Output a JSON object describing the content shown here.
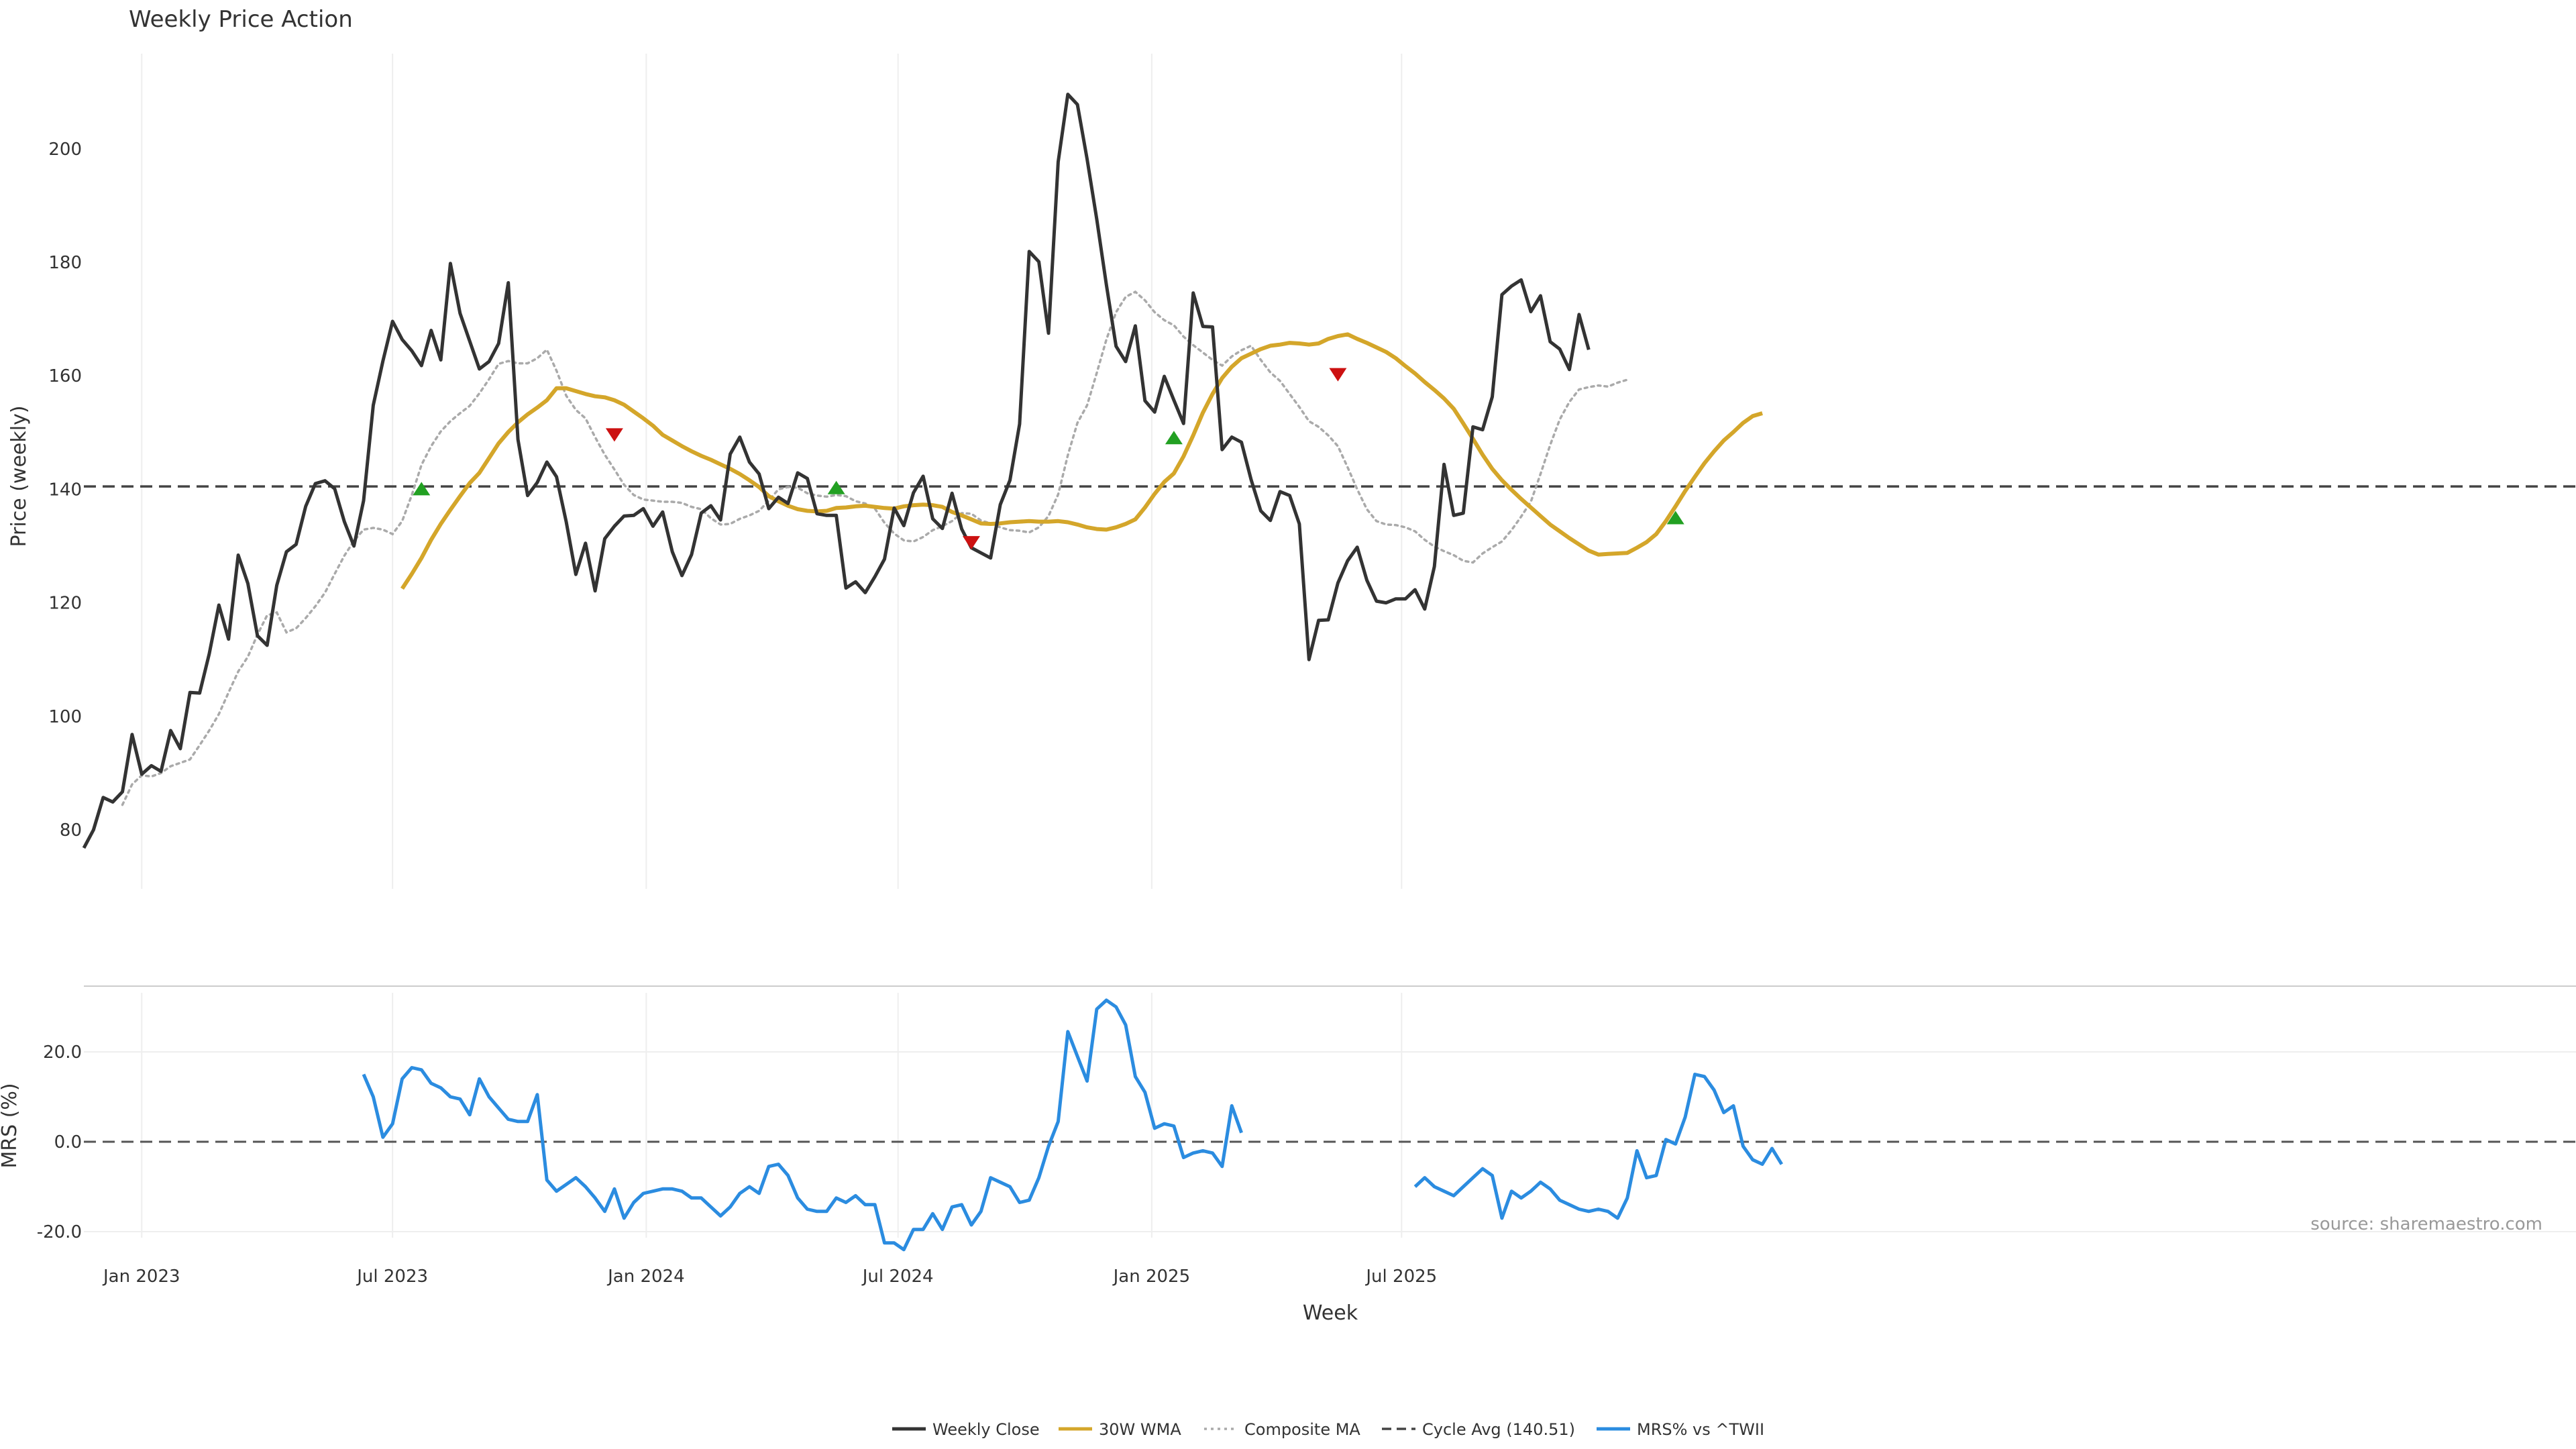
{
  "chart_data": {
    "type": "line",
    "title": "Weekly Price Action",
    "source_note": "source: sharemaestro.com",
    "xlabel": "Week",
    "x_ticks": [
      "Jan 2023",
      "Jul 2023",
      "Jan 2024",
      "Jul 2024",
      "Jan 2025",
      "Jul 2025"
    ],
    "x_range_weeks": [
      0,
      180
    ],
    "price_panel": {
      "ylabel": "Price (weekly)",
      "ylim": [
        70,
        218
      ],
      "y_ticks": [
        "80",
        "100",
        "120",
        "140",
        "160",
        "180",
        "200"
      ],
      "cycle_avg": 140.51,
      "weekly_close": [
        76.8,
        80.0,
        85.7,
        84.9,
        86.7,
        96.8,
        89.8,
        91.3,
        90.3,
        97.5,
        94.3,
        104.2,
        104.1,
        111.0,
        119.6,
        113.6,
        128.4,
        123.4,
        114.2,
        112.5,
        123.1,
        129.0,
        130.3,
        137.0,
        141.0,
        141.5,
        140.1,
        134.3,
        130.0,
        138.0,
        154.8,
        162.6,
        169.6,
        166.4,
        164.4,
        161.8,
        168.0,
        162.8,
        179.8,
        171.0,
        166.1,
        161.2,
        162.5,
        165.7,
        176.4,
        148.8,
        138.9,
        141.2,
        144.8,
        142.2,
        134.3,
        125.0,
        130.5,
        122.1,
        131.3,
        133.5,
        135.3,
        135.4,
        136.6,
        133.5,
        136.0,
        129.0,
        124.8,
        128.5,
        135.8,
        137.1,
        134.6,
        146.2,
        149.2,
        144.8,
        142.7,
        136.6,
        138.6,
        137.5,
        142.9,
        141.9,
        135.7,
        135.4,
        135.4,
        122.6,
        123.7,
        121.8,
        124.6,
        127.7,
        136.7,
        133.6,
        139.4,
        142.3,
        134.8,
        133.1,
        139.3,
        133.0,
        129.7,
        128.8,
        127.9,
        137.3,
        141.6,
        151.5,
        181.9,
        180.1,
        167.5,
        197.7,
        209.6,
        207.8,
        198.2,
        187.6,
        176.0,
        165.2,
        162.5,
        168.8,
        155.6,
        153.6,
        159.9,
        155.7,
        151.6,
        174.6,
        168.7,
        168.6,
        147.0,
        149.2,
        148.3,
        141.7,
        136.2,
        134.5,
        139.6,
        138.9,
        133.9,
        110.0,
        116.9,
        117.0,
        123.5,
        127.4,
        129.8,
        124.0,
        120.3,
        120.0,
        120.7,
        120.7,
        122.3,
        118.9,
        126.4,
        144.4,
        135.4,
        135.8,
        151.0,
        150.5,
        156.3,
        174.3,
        175.8,
        176.9,
        171.3,
        174.1,
        166.0,
        164.7,
        161.1,
        170.8,
        164.6
      ],
      "wma_30": {
        "start_week": 33,
        "values": [
          122.5,
          125.1,
          127.9,
          131.1,
          133.9,
          136.4,
          138.8,
          141.1,
          142.9,
          145.5,
          148.1,
          150.1,
          151.8,
          153.2,
          154.4,
          155.7,
          157.8,
          157.8,
          157.3,
          156.8,
          156.4,
          156.2,
          155.7,
          154.9,
          153.7,
          152.5,
          151.2,
          149.6,
          148.6,
          147.6,
          146.7,
          145.9,
          145.2,
          144.4,
          143.6,
          142.7,
          141.6,
          140.4,
          138.8,
          137.9,
          137.1,
          136.5,
          136.2,
          136.1,
          136.2,
          136.7,
          136.8,
          137.0,
          137.1,
          136.9,
          136.7,
          136.6,
          137.0,
          137.2,
          137.3,
          137.2,
          136.9,
          136.0,
          135.4,
          134.7,
          134.0,
          133.9,
          134.0,
          134.2,
          134.3,
          134.4,
          134.3,
          134.3,
          134.4,
          134.2,
          133.8,
          133.3,
          133.0,
          132.9,
          133.3,
          133.9,
          134.7,
          136.8,
          139.2,
          141.3,
          142.8,
          145.8,
          149.5,
          153.5,
          156.8,
          159.6,
          161.6,
          163.1,
          163.9,
          164.7,
          165.3,
          165.5,
          165.8,
          165.7,
          165.5,
          165.7,
          166.5,
          167.0,
          167.3,
          166.5,
          165.8,
          165.0,
          164.2,
          163.1,
          161.7,
          160.4,
          158.9,
          157.5,
          156.0,
          154.2,
          151.6,
          148.9,
          146.1,
          143.6,
          141.6,
          139.9,
          138.3,
          136.8,
          135.3,
          133.8,
          132.6,
          131.4,
          130.3,
          129.2,
          128.5,
          128.6,
          128.7,
          128.8,
          129.7,
          130.7,
          132.1,
          134.4,
          137.0,
          139.7,
          142.2,
          144.6,
          146.7,
          148.6,
          150.1,
          151.7,
          152.9,
          153.4
        ]
      },
      "composite_ma": {
        "start_week": 4,
        "values": [
          84.4,
          88.0,
          89.6,
          89.4,
          90.0,
          91.2,
          91.8,
          92.4,
          94.9,
          97.5,
          100.4,
          104.2,
          107.9,
          110.5,
          114.4,
          117.8,
          118.3,
          114.8,
          115.5,
          117.3,
          119.4,
          121.8,
          125.1,
          128.3,
          130.9,
          132.9,
          133.2,
          132.9,
          132.1,
          134.4,
          139.0,
          144.3,
          147.6,
          150.2,
          152.0,
          153.4,
          154.7,
          156.9,
          159.4,
          162.1,
          162.6,
          162.2,
          162.2,
          163.1,
          164.6,
          160.9,
          156.5,
          154.0,
          152.5,
          149.2,
          146.1,
          143.5,
          140.8,
          139.0,
          138.2,
          138.0,
          137.8,
          137.8,
          137.6,
          136.9,
          136.5,
          134.9,
          133.8,
          133.9,
          134.8,
          135.4,
          136.2,
          138.0,
          140.0,
          140.4,
          140.3,
          139.3,
          138.9,
          138.7,
          139.0,
          138.8,
          137.9,
          137.5,
          136.6,
          134.1,
          132.2,
          131.0,
          130.8,
          131.6,
          132.8,
          133.5,
          134.4,
          135.8,
          135.7,
          134.5,
          134.0,
          133.3,
          132.8,
          132.7,
          132.4,
          133.3,
          135.3,
          139.1,
          146.0,
          151.7,
          154.8,
          160.5,
          166.4,
          171.2,
          173.9,
          174.8,
          173.3,
          171.2,
          169.8,
          168.9,
          166.9,
          165.4,
          164.1,
          162.8,
          161.8,
          163.4,
          164.5,
          165.3,
          162.8,
          160.6,
          159.1,
          156.8,
          154.5,
          152.0,
          151.0,
          149.5,
          147.6,
          143.9,
          140.0,
          136.5,
          134.4,
          133.8,
          133.7,
          133.3,
          132.6,
          131.1,
          129.9,
          129.1,
          128.4,
          127.4,
          127.1,
          128.7,
          129.8,
          130.8,
          132.8,
          135.2,
          137.8,
          142.7,
          147.8,
          152.3,
          155.4,
          157.6,
          158.0,
          158.3,
          158.1,
          158.8,
          159.3
        ]
      },
      "buy_signals": [
        {
          "week": 35,
          "price": 140
        },
        {
          "week": 78,
          "price": 140.2
        },
        {
          "week": 113,
          "price": 149
        },
        {
          "week": 165,
          "price": 134.9
        }
      ],
      "sell_signals": [
        {
          "week": 55,
          "price": 149.7
        },
        {
          "week": 92,
          "price": 130.7
        },
        {
          "week": 130,
          "price": 160.3
        }
      ]
    },
    "mrs_panel": {
      "ylabel": "MRS (%)",
      "ylim": [
        -25,
        33
      ],
      "y_ticks": [
        "20.0",
        "0.0",
        "-20.0"
      ],
      "mrs_values": [
        null,
        null,
        null,
        null,
        null,
        null,
        null,
        null,
        null,
        null,
        null,
        null,
        null,
        null,
        null,
        null,
        null,
        null,
        null,
        null,
        null,
        null,
        null,
        null,
        null,
        null,
        null,
        null,
        null,
        null,
        null,
        null,
        null,
        null,
        null,
        null,
        null,
        null,
        null,
        null,
        null,
        null,
        null,
        null,
        null,
        null,
        null,
        null,
        null,
        null,
        null,
        null,
        null,
        null,
        null,
        null,
        null,
        null,
        null,
        null,
        null,
        null,
        null,
        null,
        null,
        null,
        null,
        null,
        null,
        null,
        null,
        null,
        null,
        null,
        null,
        null,
        null,
        null,
        null,
        null,
        null,
        null,
        null,
        null,
        null,
        null,
        null,
        null,
        null,
        null,
        null,
        null,
        null,
        null,
        null,
        null,
        null,
        null,
        null,
        null,
        null,
        null,
        null,
        null,
        null,
        null,
        null,
        null,
        null,
        null,
        null,
        null,
        null,
        null,
        null,
        null,
        null,
        null,
        null,
        null,
        null,
        null,
        null,
        null,
        null,
        null,
        null,
        null,
        null,
        null,
        null,
        null,
        null,
        null,
        null,
        null,
        null,
        null,
        null,
        null,
        null,
        null,
        null,
        null,
        null,
        null,
        null,
        null,
        null,
        null,
        null,
        null,
        null,
        null,
        null,
        null,
        null,
        null,
        null,
        null,
        null,
        null,
        null,
        null,
        null,
        null,
        null,
        null,
        null,
        null,
        null,
        null,
        null,
        null,
        null,
        null,
        null,
        null,
        null,
        null,
        null
      ],
      "mrs_segments": [
        {
          "start_week": 29,
          "values": [
            15.0,
            10.0,
            1.0,
            4.0,
            14.0,
            16.5,
            16.0,
            13.0,
            12.0,
            10.0,
            9.5,
            6.0,
            14.0,
            10.0,
            7.5,
            5.0,
            4.5,
            4.5,
            10.5,
            -8.5,
            -11.0,
            -9.5,
            -8.0,
            -10.0,
            -12.5,
            -15.5,
            -10.5,
            -17.0,
            -13.5,
            -11.5,
            -11.0,
            -10.5,
            -10.5,
            -11.0,
            -12.5,
            -12.5,
            -14.5,
            -16.5,
            -14.5,
            -11.5,
            -10.0,
            -11.5,
            -5.5,
            -5.0,
            -7.5,
            -12.5,
            -15.0,
            -15.5,
            -15.5,
            -12.5,
            -13.5,
            -12.0,
            -14.0,
            -14.0,
            -22.5,
            -22.5,
            -24.0,
            -19.5,
            -19.5,
            -16.0,
            -19.5,
            -14.5,
            -14.0,
            -18.5,
            -15.5,
            -8.0,
            -9.0,
            -10.0,
            -13.5,
            -13.0,
            -8.0,
            -1.0,
            4.5,
            24.5,
            19.0,
            13.5,
            29.5,
            31.5,
            30.0,
            26.0,
            14.5,
            11.0,
            3.0,
            4.0,
            3.5,
            -3.5,
            -2.5,
            -2.0,
            -2.5,
            -5.5,
            8.0,
            2.0
          ]
        },
        {
          "start_week": 138,
          "values": [
            -10.0,
            -8.0,
            -10.0,
            -11.0,
            -12.0,
            -10.0,
            -8.0,
            -6.0,
            -7.5,
            -17.0,
            -11.0,
            -12.5,
            -11.0,
            -9.0,
            -10.5,
            -13.0,
            -14.0,
            -15.0,
            -15.5,
            -15.0,
            -15.5,
            -17.0,
            -12.5,
            -2.0,
            -8.0,
            -7.5,
            0.5,
            -0.5,
            5.5,
            15.0,
            14.5,
            11.5,
            6.5,
            8.0,
            -1.0,
            -4.0,
            -5.0,
            -1.5,
            -5.0
          ]
        }
      ]
    },
    "legend": [
      {
        "label": "Weekly Close",
        "color": "#333333",
        "style": "solid"
      },
      {
        "label": "30W WMA",
        "color": "#d4a62a",
        "style": "solid"
      },
      {
        "label": "Composite MA",
        "color": "#aaaaaa",
        "style": "dotted"
      },
      {
        "label": "Cycle Avg (140.51)",
        "color": "#444444",
        "style": "dashed"
      },
      {
        "label": "MRS% vs ^TWII",
        "color": "#2b8ce0",
        "style": "solid"
      }
    ],
    "legend_position": "bottom-center",
    "colors": {
      "close": "#333333",
      "wma": "#d4a62a",
      "composite": "#aaaaaa",
      "cycle": "#444444",
      "mrs": "#2b8ce0",
      "buy": "#22a022",
      "sell": "#cc1111"
    }
  }
}
